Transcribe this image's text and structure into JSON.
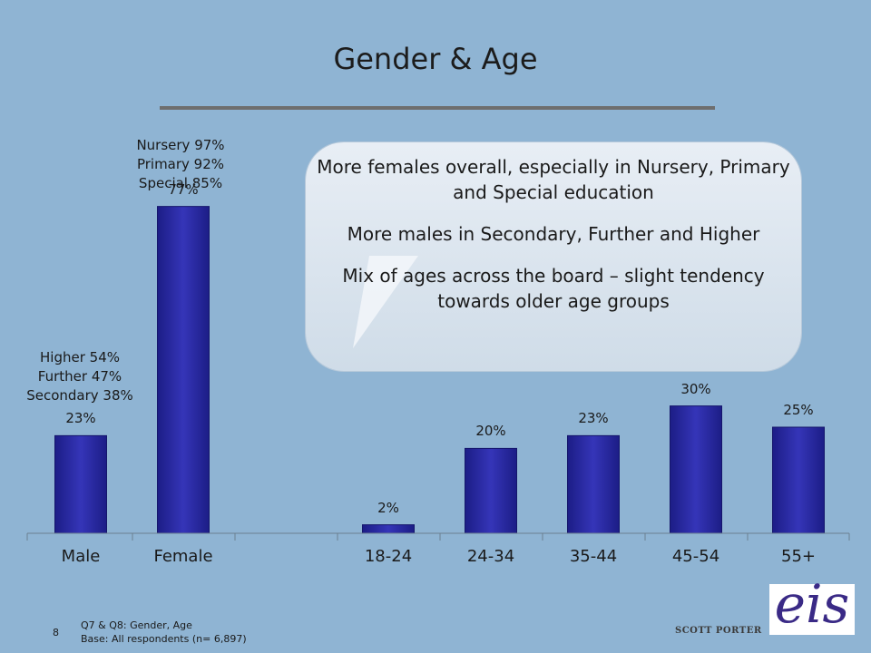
{
  "title": "Gender & Age",
  "chart_data": {
    "type": "bar",
    "categories": [
      "Male",
      "Female",
      "18-24",
      "24-34",
      "35-44",
      "45-54",
      "55+"
    ],
    "values": [
      23,
      77,
      2,
      20,
      23,
      30,
      25
    ],
    "value_labels": [
      "23%",
      "77%",
      "2%",
      "20%",
      "23%",
      "30%",
      "25%"
    ],
    "unit": "%",
    "ylim": [
      0,
      100
    ],
    "grid": false,
    "bar_color": "#2b2ca6"
  },
  "annotations": {
    "male": [
      "Higher 54%",
      "Further 47%",
      "Secondary 38%"
    ],
    "female": [
      "Nursery 97%",
      "Primary 92%",
      "Special 85%"
    ]
  },
  "callout": {
    "lines": [
      "More females overall, especially in Nursery, Primary and Special education",
      "More males in Secondary, Further and Higher",
      "Mix of ages across the board – slight tendency towards older age groups"
    ]
  },
  "footer": {
    "page_number": "8",
    "note_line1": "Q7 & Q8: Gender, Age",
    "note_line2": "Base: All respondents (n= 6,897)",
    "brand": "SCOTT PORTER",
    "logo_text": "eis"
  }
}
